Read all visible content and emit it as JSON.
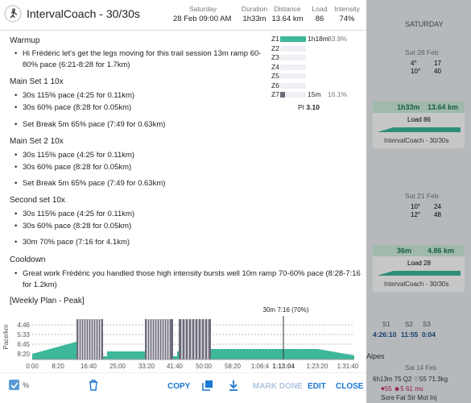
{
  "header": {
    "title": "IntervalCoach - 30/30s",
    "day": "Saturday",
    "date": "28 Feb 09:00 AM",
    "stats": [
      {
        "label": "Duration",
        "value": "1h33m"
      },
      {
        "label": "Distance",
        "value": "13.64 km"
      },
      {
        "label": "Load",
        "value": "86"
      },
      {
        "label": "Intensity",
        "value": "74%"
      }
    ]
  },
  "workout": [
    {
      "heading": "Warmup",
      "items": [
        "Hi Frédéric let's get the legs moving for this trail session 13m ramp 60-80% pace (6:21-8:28 for 1.7km)"
      ]
    },
    {
      "heading": "Main Set 1 10x",
      "items": [
        "30s 115% pace (4:25 for 0.11km)",
        "30s 60% pace (8:28 for 0.05km)"
      ],
      "after": "Set Break 5m 65% pace (7:49 for 0.63km)"
    },
    {
      "heading": "Main Set 2 10x",
      "items": [
        "30s 115% pace (4:25 for 0.11km)",
        "30s 60% pace (8:28 for 0.05km)"
      ],
      "after": "Set Break 5m 65% pace (7:49 for 0.63km)"
    },
    {
      "heading": "Second set 10x",
      "items": [
        "30s 115% pace (4:25 for 0.11km)",
        "30s 60% pace (8:28 for 0.05km)"
      ],
      "after": "30m 70% pace (7:16 for 4.1km)"
    },
    {
      "heading": "Cooldown",
      "items": [
        "Great work Frédéric you handled those high intensity bursts well 10m ramp 70-60% pace (8:28-7:16 for 1.2km)"
      ]
    },
    {
      "heading": "[Weekly Plan - Peak]"
    }
  ],
  "zones": [
    {
      "name": "Z1",
      "time": "1h18m",
      "percent": 83.9,
      "percent_label": "83.9%"
    },
    {
      "name": "Z2"
    },
    {
      "name": "Z3"
    },
    {
      "name": "Z4"
    },
    {
      "name": "Z5"
    },
    {
      "name": "Z6"
    },
    {
      "name": "Z7",
      "time": "15m",
      "percent": 16.1,
      "percent_label": "16.1%"
    }
  ],
  "pi": {
    "label": "PI",
    "value": "3.10"
  },
  "profile": {
    "y_label": "Pace/km",
    "y_ticks": [
      "4:46",
      "5:33",
      "6:45",
      "8:20"
    ],
    "x_ticks": [
      "0:00",
      "8:20",
      "16:40",
      "25:00",
      "33:20",
      "41:40",
      "50:00",
      "58:20",
      "1:06:4",
      "1:13:04",
      "1:23:20",
      "1:31:40"
    ],
    "annotation": "30m 7:16 (70%)"
  },
  "footer": {
    "percent": "%",
    "copy": "COPY",
    "mark_done": "MARK DONE",
    "edit": "EDIT",
    "close": "CLOSE"
  },
  "background": {
    "column": "SATURDAY",
    "cards": [
      {
        "date": "Sat 28 Feb",
        "temp_low": "4°",
        "temp_high": "10°",
        "wind": "17",
        "gust": "40",
        "duration": "1h33m",
        "distance": "13.64 km",
        "load": "Load 86",
        "name": "IntervalCoach - 30/30s"
      },
      {
        "date": "Sat 21 Feb",
        "temp_low": "10°",
        "temp_high": "12°",
        "wind": "24",
        "gust": "48",
        "duration": "36m",
        "distance": "4.86 km",
        "load": "Load 28",
        "name": "IntervalCoach - 30/30s"
      }
    ],
    "summary_labels": [
      "S1",
      "S2",
      "S3"
    ],
    "summary_values": [
      "4:26:10",
      "11:55",
      "0:04"
    ],
    "region": "Alpes",
    "date3": "Sat 14 Feb",
    "wellness1": "6h13m 75 Q2 ♡55 71.3kg",
    "wellness2": "♥55 ☻5 61 ms",
    "wellness3": "Sore Fat Str Mot Inj"
  }
}
